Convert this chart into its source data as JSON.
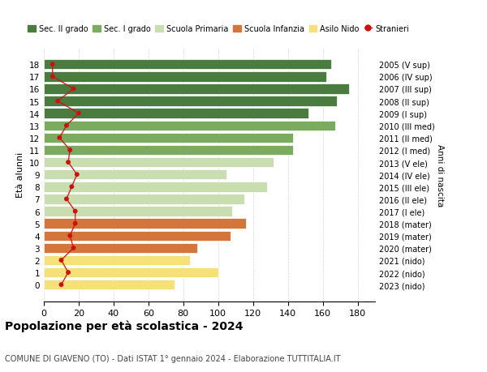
{
  "ages": [
    0,
    1,
    2,
    3,
    4,
    5,
    6,
    7,
    8,
    9,
    10,
    11,
    12,
    13,
    14,
    15,
    16,
    17,
    18
  ],
  "right_labels_by_age": {
    "0": "2023 (nido)",
    "1": "2022 (nido)",
    "2": "2021 (nido)",
    "3": "2020 (mater)",
    "4": "2019 (mater)",
    "5": "2018 (mater)",
    "6": "2017 (I ele)",
    "7": "2016 (II ele)",
    "8": "2015 (III ele)",
    "9": "2014 (IV ele)",
    "10": "2013 (V ele)",
    "11": "2012 (I med)",
    "12": "2011 (II med)",
    "13": "2010 (III med)",
    "14": "2009 (I sup)",
    "15": "2008 (II sup)",
    "16": "2007 (III sup)",
    "17": "2006 (IV sup)",
    "18": "2005 (V sup)"
  },
  "bar_values_by_age": {
    "0": 75,
    "1": 100,
    "2": 84,
    "3": 88,
    "4": 107,
    "5": 116,
    "6": 108,
    "7": 115,
    "8": 128,
    "9": 105,
    "10": 132,
    "11": 143,
    "12": 143,
    "13": 167,
    "14": 152,
    "15": 168,
    "16": 175,
    "17": 162,
    "18": 165
  },
  "bar_colors_by_age": {
    "0": "#f5e07a",
    "1": "#f5e07a",
    "2": "#f5e07a",
    "3": "#d4763b",
    "4": "#d4763b",
    "5": "#d4763b",
    "6": "#c8ddb0",
    "7": "#c8ddb0",
    "8": "#c8ddb0",
    "9": "#c8ddb0",
    "10": "#c8ddb0",
    "11": "#7aab5e",
    "12": "#7aab5e",
    "13": "#7aab5e",
    "14": "#4a7c3f",
    "15": "#4a7c3f",
    "16": "#4a7c3f",
    "17": "#4a7c3f",
    "18": "#4a7c3f"
  },
  "stranieri_by_age": {
    "0": 10,
    "1": 14,
    "2": 10,
    "3": 17,
    "4": 15,
    "5": 18,
    "6": 18,
    "7": 13,
    "8": 16,
    "9": 19,
    "10": 14,
    "11": 15,
    "12": 9,
    "13": 13,
    "14": 20,
    "15": 8,
    "16": 17,
    "17": 5,
    "18": 5
  },
  "stranieri_color": "#cc1111",
  "title": "Popolazione per età scolastica - 2024",
  "subtitle": "COMUNE DI GIAVENO (TO) - Dati ISTAT 1° gennaio 2024 - Elaborazione TUTTITALIA.IT",
  "ylabel": "Età alunni",
  "right_ylabel": "Anni di nascita",
  "xlim": [
    0,
    190
  ],
  "xticks": [
    0,
    20,
    40,
    60,
    80,
    100,
    120,
    140,
    160,
    180
  ],
  "legend_entries": [
    {
      "label": "Sec. II grado",
      "color": "#4a7c3f"
    },
    {
      "label": "Sec. I grado",
      "color": "#7aab5e"
    },
    {
      "label": "Scuola Primaria",
      "color": "#c8ddb0"
    },
    {
      "label": "Scuola Infanzia",
      "color": "#d4763b"
    },
    {
      "label": "Asilo Nido",
      "color": "#f5e07a"
    },
    {
      "label": "Stranieri",
      "color": "#cc1111"
    }
  ],
  "bg_color": "#ffffff",
  "grid_color": "#cccccc"
}
